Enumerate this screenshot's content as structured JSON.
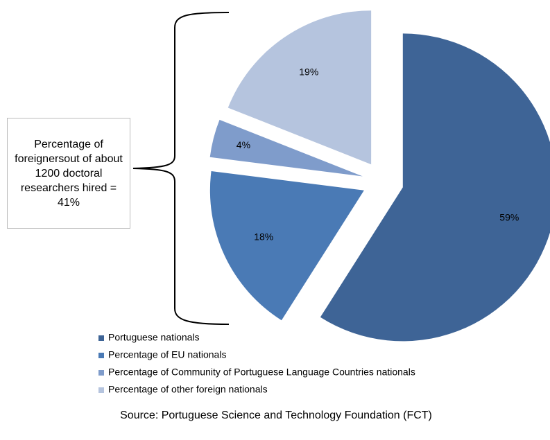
{
  "chart_data": {
    "type": "pie",
    "categories": [
      "Portuguese nationals",
      "Percentage of EU nationals",
      "Percentage of Community of Portuguese Language Countries nationals",
      "Percentage of other foreign nationals"
    ],
    "values": [
      59,
      18,
      4,
      19
    ],
    "value_labels": [
      "59%",
      "18%",
      "4%",
      "19%"
    ],
    "colors": [
      "#3e6496",
      "#4a7ab5",
      "#7f9ccb",
      "#b5c4de"
    ],
    "annotation": "Percentage of foreignersout of about 1200 doctoral researchers hired = 41%",
    "source": "Source: Portuguese Science and Technology Foundation (FCT)"
  }
}
